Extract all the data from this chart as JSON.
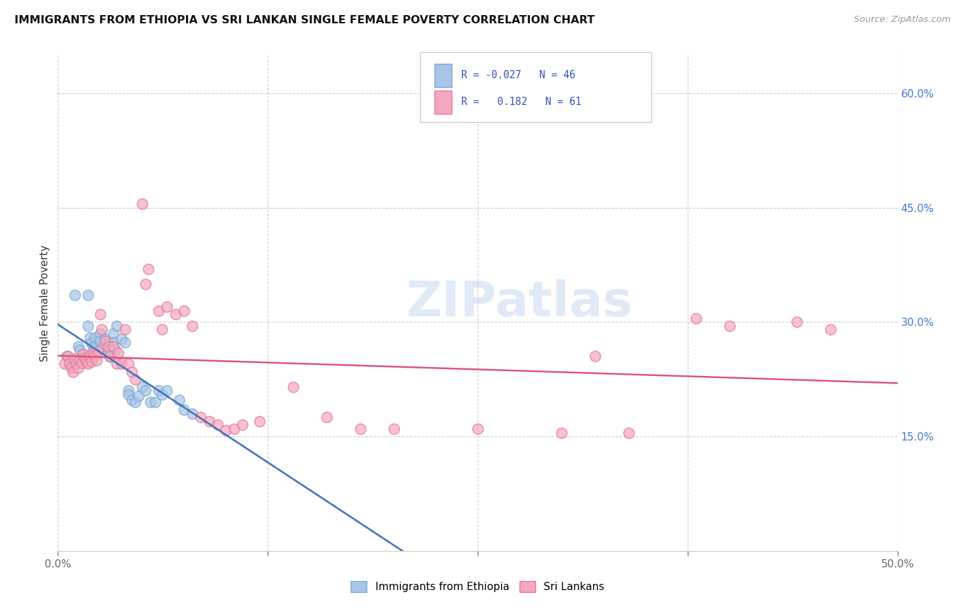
{
  "title": "IMMIGRANTS FROM ETHIOPIA VS SRI LANKAN SINGLE FEMALE POVERTY CORRELATION CHART",
  "source": "Source: ZipAtlas.com",
  "ylabel": "Single Female Poverty",
  "xlim": [
    0.0,
    0.5
  ],
  "ylim": [
    0.0,
    0.65
  ],
  "yticks": [
    0.15,
    0.3,
    0.45,
    0.6
  ],
  "ytick_labels": [
    "15.0%",
    "30.0%",
    "45.0%",
    "60.0%"
  ],
  "xticks": [
    0.0,
    0.125,
    0.25,
    0.375,
    0.5
  ],
  "xtick_labels": [
    "0.0%",
    "",
    "",
    "",
    "50.0%"
  ],
  "ethiopia_color": "#aac4e8",
  "srilanka_color": "#f4a8c0",
  "ethiopia_edge_color": "#7aaad4",
  "srilanka_edge_color": "#e87898",
  "ethiopia_line_color": "#4477bb",
  "srilanka_line_color": "#dd5577",
  "watermark": "ZIPatlas",
  "ethiopia_points": [
    [
      0.005,
      0.255
    ],
    [
      0.007,
      0.248
    ],
    [
      0.008,
      0.244
    ],
    [
      0.009,
      0.24
    ],
    [
      0.01,
      0.335
    ],
    [
      0.012,
      0.268
    ],
    [
      0.013,
      0.263
    ],
    [
      0.015,
      0.258
    ],
    [
      0.015,
      0.253
    ],
    [
      0.016,
      0.248
    ],
    [
      0.018,
      0.335
    ],
    [
      0.018,
      0.295
    ],
    [
      0.019,
      0.28
    ],
    [
      0.02,
      0.272
    ],
    [
      0.021,
      0.265
    ],
    [
      0.022,
      0.28
    ],
    [
      0.022,
      0.268
    ],
    [
      0.023,
      0.26
    ],
    [
      0.025,
      0.285
    ],
    [
      0.025,
      0.275
    ],
    [
      0.026,
      0.265
    ],
    [
      0.028,
      0.278
    ],
    [
      0.03,
      0.272
    ],
    [
      0.03,
      0.26
    ],
    [
      0.031,
      0.254
    ],
    [
      0.033,
      0.285
    ],
    [
      0.033,
      0.273
    ],
    [
      0.034,
      0.263
    ],
    [
      0.035,
      0.295
    ],
    [
      0.038,
      0.278
    ],
    [
      0.04,
      0.273
    ],
    [
      0.042,
      0.21
    ],
    [
      0.042,
      0.205
    ],
    [
      0.044,
      0.198
    ],
    [
      0.046,
      0.195
    ],
    [
      0.048,
      0.203
    ],
    [
      0.05,
      0.215
    ],
    [
      0.052,
      0.21
    ],
    [
      0.055,
      0.195
    ],
    [
      0.058,
      0.195
    ],
    [
      0.06,
      0.21
    ],
    [
      0.062,
      0.205
    ],
    [
      0.065,
      0.21
    ],
    [
      0.072,
      0.198
    ],
    [
      0.075,
      0.185
    ],
    [
      0.08,
      0.18
    ]
  ],
  "srilanka_points": [
    [
      0.004,
      0.245
    ],
    [
      0.006,
      0.255
    ],
    [
      0.007,
      0.245
    ],
    [
      0.008,
      0.24
    ],
    [
      0.009,
      0.235
    ],
    [
      0.01,
      0.252
    ],
    [
      0.011,
      0.245
    ],
    [
      0.012,
      0.24
    ],
    [
      0.013,
      0.25
    ],
    [
      0.014,
      0.246
    ],
    [
      0.015,
      0.258
    ],
    [
      0.016,
      0.252
    ],
    [
      0.017,
      0.248
    ],
    [
      0.018,
      0.245
    ],
    [
      0.019,
      0.255
    ],
    [
      0.02,
      0.248
    ],
    [
      0.021,
      0.26
    ],
    [
      0.022,
      0.255
    ],
    [
      0.023,
      0.25
    ],
    [
      0.024,
      0.262
    ],
    [
      0.025,
      0.31
    ],
    [
      0.026,
      0.29
    ],
    [
      0.028,
      0.275
    ],
    [
      0.03,
      0.268
    ],
    [
      0.031,
      0.255
    ],
    [
      0.033,
      0.268
    ],
    [
      0.035,
      0.245
    ],
    [
      0.036,
      0.26
    ],
    [
      0.038,
      0.245
    ],
    [
      0.04,
      0.29
    ],
    [
      0.042,
      0.245
    ],
    [
      0.044,
      0.235
    ],
    [
      0.046,
      0.225
    ],
    [
      0.05,
      0.455
    ],
    [
      0.052,
      0.35
    ],
    [
      0.054,
      0.37
    ],
    [
      0.06,
      0.315
    ],
    [
      0.062,
      0.29
    ],
    [
      0.065,
      0.32
    ],
    [
      0.07,
      0.31
    ],
    [
      0.075,
      0.315
    ],
    [
      0.08,
      0.295
    ],
    [
      0.085,
      0.175
    ],
    [
      0.09,
      0.17
    ],
    [
      0.095,
      0.165
    ],
    [
      0.1,
      0.158
    ],
    [
      0.105,
      0.16
    ],
    [
      0.11,
      0.165
    ],
    [
      0.12,
      0.17
    ],
    [
      0.14,
      0.215
    ],
    [
      0.16,
      0.175
    ],
    [
      0.18,
      0.16
    ],
    [
      0.2,
      0.16
    ],
    [
      0.25,
      0.16
    ],
    [
      0.3,
      0.155
    ],
    [
      0.32,
      0.255
    ],
    [
      0.34,
      0.155
    ],
    [
      0.38,
      0.305
    ],
    [
      0.4,
      0.295
    ],
    [
      0.44,
      0.3
    ],
    [
      0.46,
      0.29
    ]
  ]
}
